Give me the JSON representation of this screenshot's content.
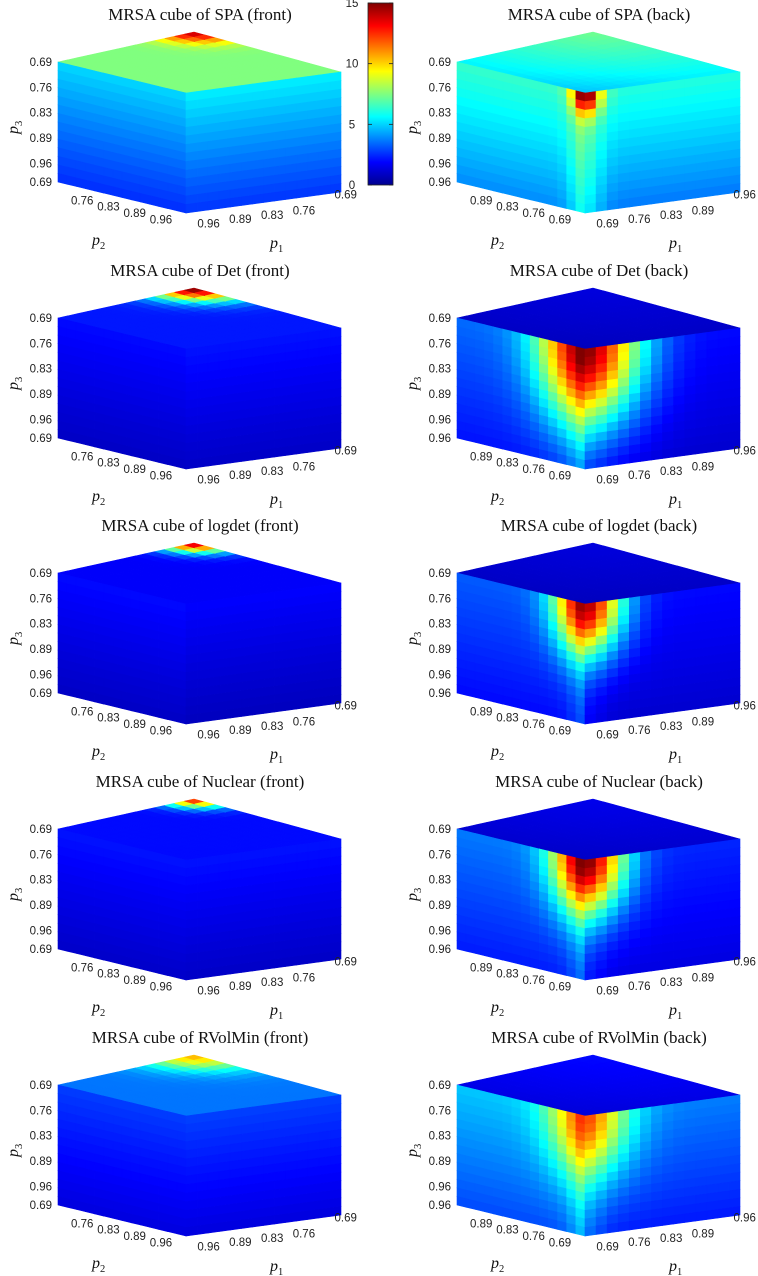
{
  "chart_data": {
    "type": "heatmap",
    "description_of_encoding": "",
    "colorbar": {
      "range": [
        0,
        15
      ],
      "ticks": [
        0,
        5,
        10,
        15
      ],
      "colormap": "jet"
    },
    "axes": {
      "p1": {
        "label": "p",
        "sub": "1"
      },
      "p2": {
        "label": "p",
        "sub": "2"
      },
      "p3": {
        "label": "p",
        "sub": "3"
      },
      "p3_ticks": [
        "0.69",
        "0.76",
        "0.83",
        "0.89",
        "0.96"
      ],
      "front": {
        "p2_ticks": [
          "0.69",
          "0.76",
          "0.83",
          "0.89",
          "0.96"
        ],
        "p1_ticks": [
          "0.96",
          "0.89",
          "0.83",
          "0.76",
          "0.69"
        ]
      },
      "back": {
        "p2_ticks": [
          "0.96",
          "0.89",
          "0.83",
          "0.76",
          "0.69"
        ],
        "p1_ticks": [
          "0.69",
          "0.76",
          "0.83",
          "0.89",
          "0.96"
        ]
      }
    },
    "panels": [
      {
        "title": "MRSA cube of SPA (front)",
        "view": "front",
        "top": 7.5,
        "left_face": 4.0,
        "right_face": 4.6,
        "hotspot": 14.0,
        "spread": 0.1
      },
      {
        "title": "MRSA cube of SPA (back)",
        "view": "back",
        "top": 7.3,
        "left_face": 5.6,
        "right_face": 5.6,
        "hotspot": 14.5,
        "spread": 0.06
      },
      {
        "title": "MRSA cube of Det (front)",
        "view": "front",
        "top": 2.2,
        "left_face": 1.6,
        "right_face": 1.8,
        "hotspot": 15.0,
        "spread": 0.12
      },
      {
        "title": "MRSA cube of Det (back)",
        "view": "back",
        "top": 1.4,
        "left_face": 3.0,
        "right_face": 1.8,
        "hotspot": 15.0,
        "spread": 0.22
      },
      {
        "title": "MRSA cube of logdet (front)",
        "view": "front",
        "top": 1.8,
        "left_face": 1.6,
        "right_face": 1.6,
        "hotspot": 14.0,
        "spread": 0.09
      },
      {
        "title": "MRSA cube of logdet (back)",
        "view": "back",
        "top": 1.4,
        "left_face": 2.8,
        "right_face": 1.8,
        "hotspot": 14.5,
        "spread": 0.15
      },
      {
        "title": "MRSA cube of Nuclear (front)",
        "view": "front",
        "top": 2.0,
        "left_face": 1.7,
        "right_face": 1.8,
        "hotspot": 13.0,
        "spread": 0.08
      },
      {
        "title": "MRSA cube of Nuclear (back)",
        "view": "back",
        "top": 1.6,
        "left_face": 3.2,
        "right_face": 2.2,
        "hotspot": 15.0,
        "spread": 0.16
      },
      {
        "title": "MRSA cube of RVolMin (front)",
        "view": "front",
        "top": 3.6,
        "left_face": 2.2,
        "right_face": 2.4,
        "hotspot": 10.5,
        "spread": 0.14
      },
      {
        "title": "MRSA cube of RVolMin (back)",
        "view": "back",
        "top": 2.0,
        "left_face": 4.2,
        "right_face": 3.4,
        "hotspot": 11.5,
        "spread": 0.18
      }
    ]
  }
}
